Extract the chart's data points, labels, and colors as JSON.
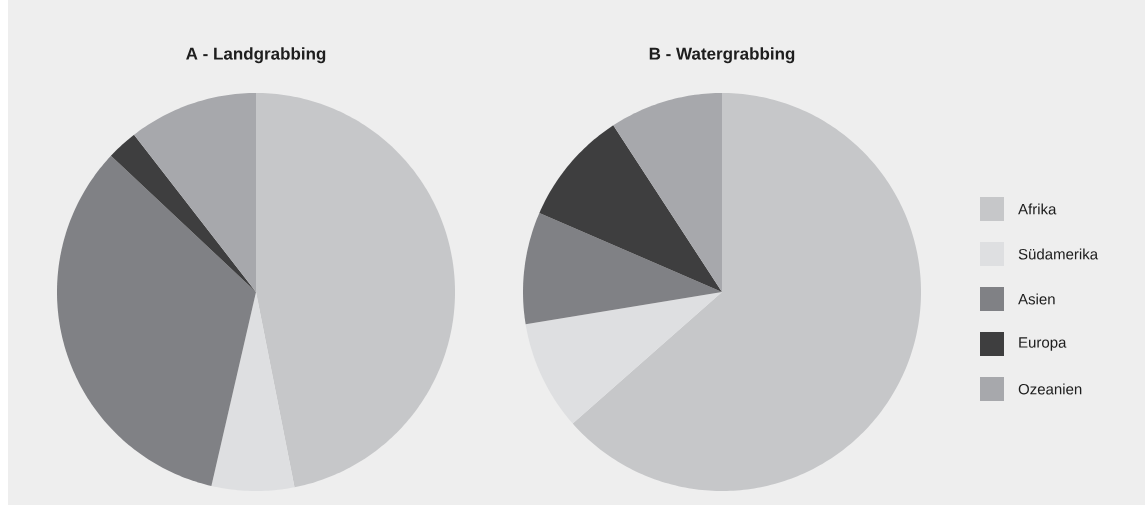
{
  "chart_data": [
    {
      "type": "pie",
      "title": "A - Landgrabbing",
      "categories": [
        null,
        null,
        null,
        null,
        null
      ],
      "values": [
        46.9,
        6.7,
        33.4,
        2.5,
        10.5
      ],
      "colors": [
        "#c6c7c9",
        "#dedfe1",
        "#808185",
        "#3e3e3f",
        "#a7a8ac"
      ]
    },
    {
      "type": "pie",
      "title": "B - Watergrabbing",
      "categories": [
        "Afrika",
        "Südamerika",
        "Asien",
        "Europa",
        "Ozeanien"
      ],
      "values": [
        63.5,
        8.9,
        9.1,
        9.3,
        9.2
      ],
      "colors": [
        "#c6c7c9",
        "#dedfe1",
        "#808185",
        "#3e3e3f",
        "#a7a8ac"
      ],
      "legend": "right"
    }
  ]
}
